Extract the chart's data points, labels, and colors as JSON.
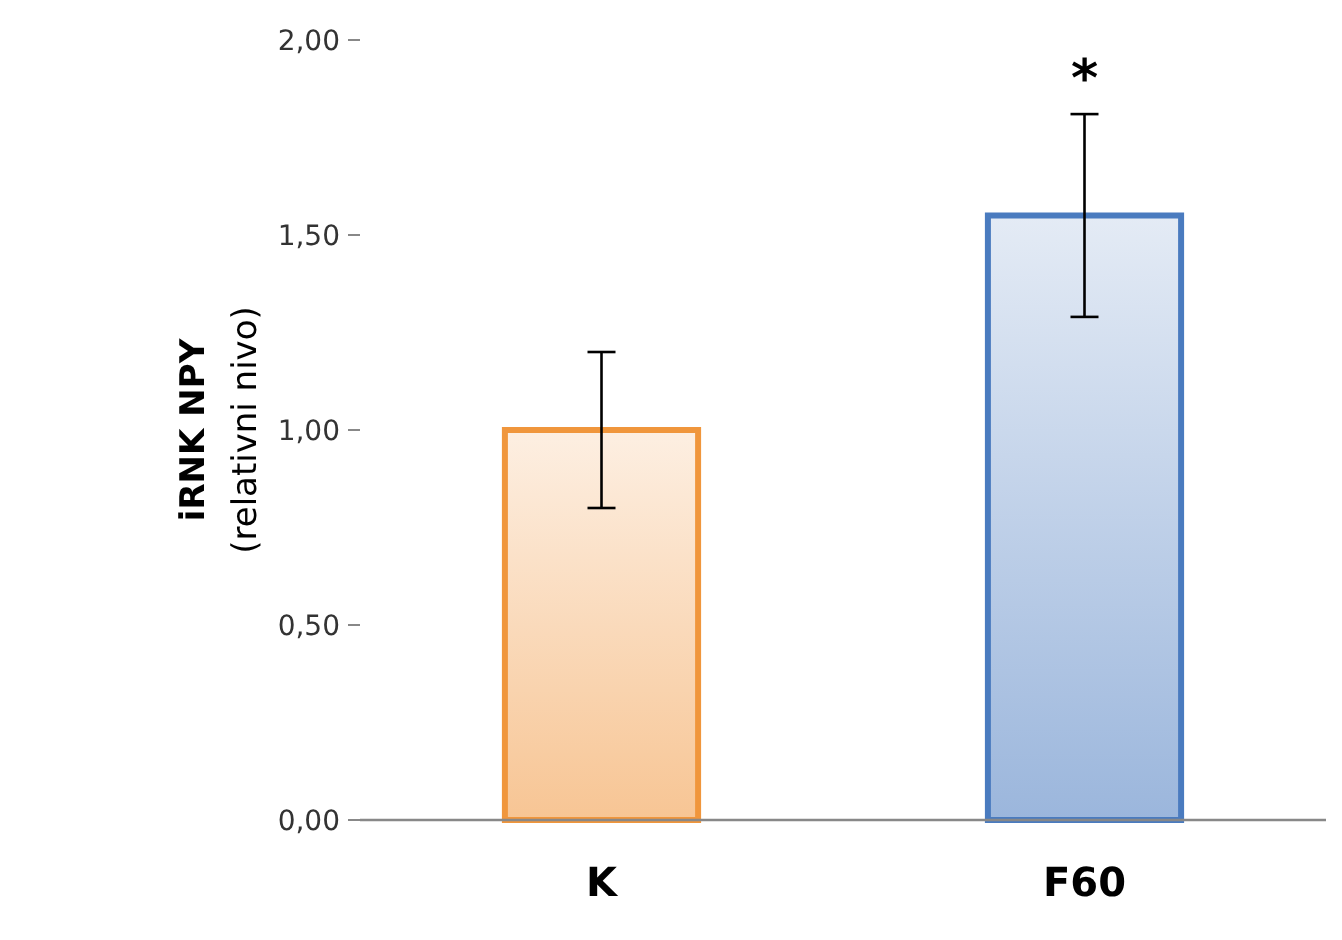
{
  "chart_data": {
    "type": "bar",
    "ylabel": "iRNK NPY\n(relativni nivo)",
    "categories": [
      "K",
      "F60"
    ],
    "values": [
      1.0,
      1.55
    ],
    "errors": [
      0.2,
      0.26
    ],
    "colors": [
      "#f0963c",
      "#4a7bbf"
    ],
    "ylim": [
      0,
      2
    ],
    "yticks": [
      {
        "value": 0,
        "label": "0,00"
      },
      {
        "value": 0.5,
        "label": "0,50"
      },
      {
        "value": 1,
        "label": "1,00"
      },
      {
        "value": 1.5,
        "label": "1,50"
      },
      {
        "value": 2,
        "label": "2,00"
      }
    ],
    "grid": false,
    "annotations": [
      "*"
    ]
  }
}
